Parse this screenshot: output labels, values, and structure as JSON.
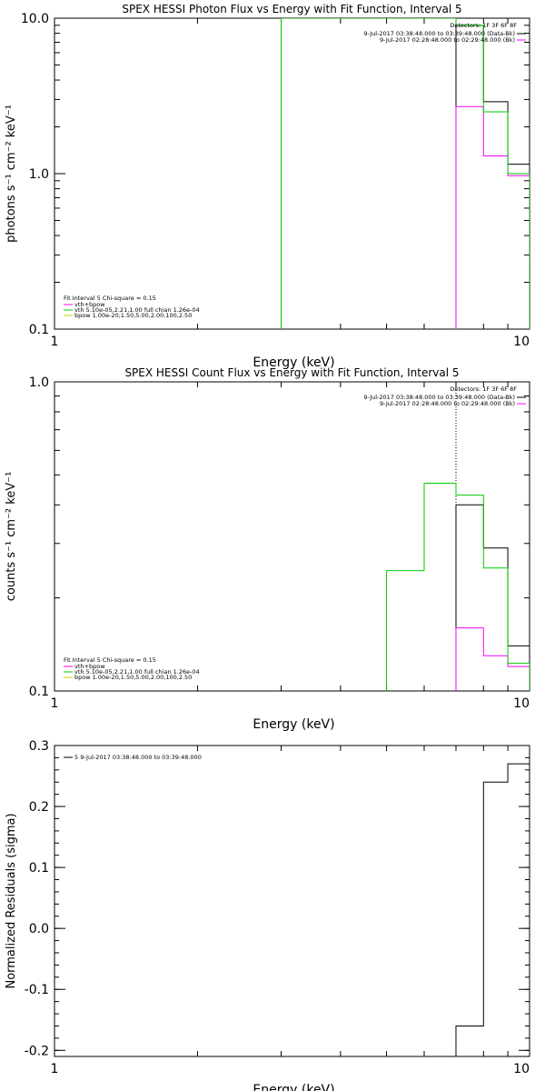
{
  "colors": {
    "data": "#000000",
    "background": "#ff00ff",
    "fit_total": "#ff00ff",
    "vth": "#00cc00",
    "bpow": "#cccc00"
  },
  "chart_data": [
    {
      "type": "line",
      "title": "SPEX HESSI Photon Flux vs Energy with Fit Function, Interval 5",
      "xlabel": "Energy (keV)",
      "ylabel": "photons s⁻¹ cm⁻² keV⁻¹",
      "xscale": "log",
      "yscale": "log",
      "xlim": [
        1,
        10
      ],
      "ylim": [
        0.1,
        10
      ],
      "xticks": [
        "1",
        "10"
      ],
      "yticks": [
        {
          "v": 0.1,
          "label": "0.1"
        },
        {
          "v": 1,
          "label": "1.0"
        },
        {
          "v": 10,
          "label": "10.0"
        }
      ],
      "legend_right": {
        "header": "Detectors: 1F 3F 6F 8F",
        "entries": [
          {
            "text": "9-Jul-2017 03:38:48.000 to 03:39:48.000 (Data-Bk)",
            "color": "#000000"
          },
          {
            "text": "9-Jul-2017 02:28:48.000 to 02:29:48.000 (Bk)",
            "color": "#ff00ff"
          }
        ]
      },
      "legend_left": {
        "header": "Fit Interval  5   Chi-square = 0.15",
        "entries": [
          {
            "text": "vth+bpow",
            "color": "#ff00ff"
          },
          {
            "text": "vth 5.10e-05,2.21,1.00  full chian 1.26e-04",
            "color": "#00cc00"
          },
          {
            "text": "bpow 1.00e-20,1.50,5.00,2.00,100,2.50",
            "color": "#cccc00"
          }
        ]
      },
      "series": [
        {
          "color": "#000000",
          "edges": [
            7,
            8,
            9,
            10
          ],
          "values": [
            9.0,
            2.9,
            1.15
          ]
        },
        {
          "color": "#ff00ff",
          "edges": [
            7,
            8,
            9,
            10
          ],
          "values": [
            2.7,
            1.3,
            0.97
          ]
        },
        {
          "color": "#00cc00",
          "edges": [
            3,
            7,
            8,
            9,
            10
          ],
          "values": [
            10.0,
            9.0,
            2.5,
            1.0
          ]
        }
      ],
      "vlines": [
        {
          "x": 7,
          "color": "#ff00ff",
          "style": "dotted"
        },
        {
          "x": 3,
          "color": "#00cc00"
        }
      ]
    },
    {
      "type": "line",
      "title": "SPEX HESSI Count Flux vs Energy with Fit Function, Interval 5",
      "xlabel": "Energy (keV)",
      "ylabel": "counts s⁻¹ cm⁻² keV⁻¹",
      "xscale": "log",
      "yscale": "log",
      "xlim": [
        1,
        10
      ],
      "ylim": [
        0.1,
        1
      ],
      "xticks": [
        "1",
        "10"
      ],
      "yticks": [
        {
          "v": 0.1,
          "label": "0.1"
        },
        {
          "v": 1,
          "label": "1.0"
        }
      ],
      "legend_right": {
        "header": "Detectors: 1F 3F 6F 8F",
        "entries": [
          {
            "text": "9-Jul-2017 03:38:48.000 to 03:39:48.000 (Data-Bk)",
            "color": "#000000"
          },
          {
            "text": "9-Jul-2017 02:28:48.000 to 02:29:48.000 (Bk)",
            "color": "#ff00ff"
          }
        ]
      },
      "legend_left": {
        "header": "Fit Interval  5   Chi-square = 0.15",
        "entries": [
          {
            "text": "vth+bpow",
            "color": "#ff00ff"
          },
          {
            "text": "vth 5.10e-05,2.21,1.00  full chian 1.26e-04",
            "color": "#00cc00"
          },
          {
            "text": "bpow 1.00e-20,1.50,5.00,2.00,100,2.50",
            "color": "#cccc00"
          }
        ]
      },
      "series": [
        {
          "color": "#000000",
          "edges": [
            7,
            8,
            9,
            10
          ],
          "values": [
            0.4,
            0.29,
            0.14
          ]
        },
        {
          "color": "#ff00ff",
          "edges": [
            7,
            8,
            9,
            10
          ],
          "values": [
            0.16,
            0.13,
            0.12
          ]
        },
        {
          "color": "#00cc00",
          "edges": [
            5,
            6,
            7,
            8,
            9,
            10
          ],
          "values": [
            0.245,
            0.47,
            0.43,
            0.25,
            0.123
          ]
        }
      ],
      "vlines": [
        {
          "x": 7,
          "color": "#000000",
          "style": "dotted"
        },
        {
          "x": 7,
          "color": "#ff00ff",
          "style": "dotted",
          "ymax": 0.16
        }
      ]
    },
    {
      "type": "line",
      "title": "",
      "xlabel": "Energy (keV)",
      "ylabel": "Normalized Residuals (sigma)",
      "xscale": "log",
      "yscale": "linear",
      "xlim": [
        1,
        10
      ],
      "ylim": [
        -0.21,
        0.3
      ],
      "xticks": [
        "1",
        "10"
      ],
      "yticks": [
        {
          "v": 0.3,
          "label": "0.3"
        },
        {
          "v": 0.2,
          "label": "0.2"
        },
        {
          "v": 0.1,
          "label": "0.1"
        },
        {
          "v": 0.0,
          "label": "0.0"
        },
        {
          "v": -0.1,
          "label": "-0.1"
        },
        {
          "v": -0.2,
          "label": "-0.2"
        }
      ],
      "legend_left": {
        "header": "",
        "entries": [
          {
            "text": "5  9-Jul-2017 03:38:48.000 to 03:39:48.000",
            "color": "#000000"
          }
        ]
      },
      "series": [
        {
          "color": "#000000",
          "edges": [
            7,
            8,
            9,
            10
          ],
          "values": [
            -0.16,
            0.24,
            0.27
          ]
        }
      ],
      "vlines": []
    }
  ]
}
